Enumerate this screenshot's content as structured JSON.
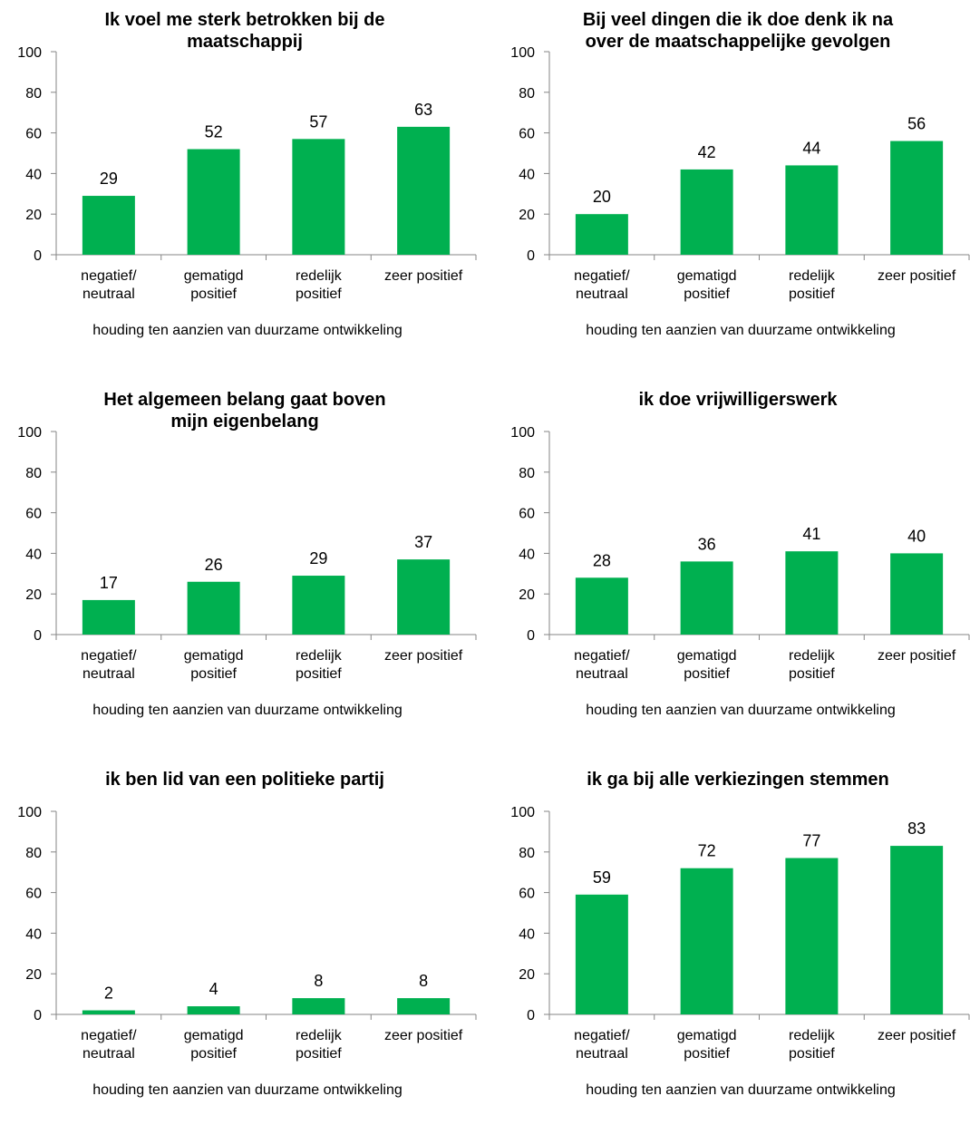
{
  "chart_data": [
    {
      "type": "bar",
      "title": [
        "Ik voel me sterk betrokken bij de",
        "maatschappij"
      ],
      "categories": [
        [
          "negatief/",
          "neutraal"
        ],
        [
          "gematigd",
          "positief"
        ],
        [
          "redelijk",
          "positief"
        ],
        [
          "zeer positief"
        ]
      ],
      "values": [
        29,
        52,
        57,
        63
      ],
      "xlabel": "houding ten aanzien van duurzame ontwikkeling",
      "ylabel": "",
      "ylim": [
        0,
        100
      ],
      "yticks": [
        "0",
        "20",
        "40",
        "60",
        "80",
        "100"
      ],
      "grid": false,
      "legend": "none"
    },
    {
      "type": "bar",
      "title": [
        "Bij veel dingen die ik doe denk ik na",
        "over de maatschappelijke gevolgen"
      ],
      "categories": [
        [
          "negatief/",
          "neutraal"
        ],
        [
          "gematigd",
          "positief"
        ],
        [
          "redelijk",
          "positief"
        ],
        [
          "zeer positief"
        ]
      ],
      "values": [
        20,
        42,
        44,
        56
      ],
      "xlabel": "houding ten aanzien van duurzame ontwikkeling",
      "ylabel": "",
      "ylim": [
        0,
        100
      ],
      "yticks": [
        "0",
        "20",
        "40",
        "60",
        "80",
        "100"
      ],
      "grid": false,
      "legend": "none"
    },
    {
      "type": "bar",
      "title": [
        "Het algemeen belang gaat boven",
        "mijn eigenbelang"
      ],
      "categories": [
        [
          "negatief/",
          "neutraal"
        ],
        [
          "gematigd",
          "positief"
        ],
        [
          "redelijk",
          "positief"
        ],
        [
          "zeer positief"
        ]
      ],
      "values": [
        17,
        26,
        29,
        37
      ],
      "xlabel": "houding ten aanzien van duurzame ontwikkeling",
      "ylabel": "",
      "ylim": [
        0,
        100
      ],
      "yticks": [
        "0",
        "20",
        "40",
        "60",
        "80",
        "100"
      ],
      "grid": false,
      "legend": "none"
    },
    {
      "type": "bar",
      "title": [
        "ik doe vrijwilligerswerk"
      ],
      "categories": [
        [
          "negatief/",
          "neutraal"
        ],
        [
          "gematigd",
          "positief"
        ],
        [
          "redelijk",
          "positief"
        ],
        [
          "zeer positief"
        ]
      ],
      "values": [
        28,
        36,
        41,
        40
      ],
      "xlabel": "houding ten aanzien van duurzame ontwikkeling",
      "ylabel": "",
      "ylim": [
        0,
        100
      ],
      "yticks": [
        "0",
        "20",
        "40",
        "60",
        "80",
        "100"
      ],
      "grid": false,
      "legend": "none"
    },
    {
      "type": "bar",
      "title": [
        "ik ben lid van een politieke partij"
      ],
      "categories": [
        [
          "negatief/",
          "neutraal"
        ],
        [
          "gematigd",
          "positief"
        ],
        [
          "redelijk",
          "positief"
        ],
        [
          "zeer positief"
        ]
      ],
      "values": [
        2,
        4,
        8,
        8
      ],
      "xlabel": "houding ten aanzien van duurzame ontwikkeling",
      "ylabel": "",
      "ylim": [
        0,
        100
      ],
      "yticks": [
        "0",
        "20",
        "40",
        "60",
        "80",
        "100"
      ],
      "grid": false,
      "legend": "none"
    },
    {
      "type": "bar",
      "title": [
        "ik ga bij alle verkiezingen stemmen"
      ],
      "categories": [
        [
          "negatief/",
          "neutraal"
        ],
        [
          "gematigd",
          "positief"
        ],
        [
          "redelijk",
          "positief"
        ],
        [
          "zeer positief"
        ]
      ],
      "values": [
        59,
        72,
        77,
        83
      ],
      "xlabel": "houding ten aanzien van duurzame ontwikkeling",
      "ylabel": "",
      "ylim": [
        0,
        100
      ],
      "yticks": [
        "0",
        "20",
        "40",
        "60",
        "80",
        "100"
      ],
      "grid": false,
      "legend": "none"
    }
  ],
  "colors": {
    "bar": "#00b050",
    "axis": "#868686",
    "text": "#000000"
  }
}
